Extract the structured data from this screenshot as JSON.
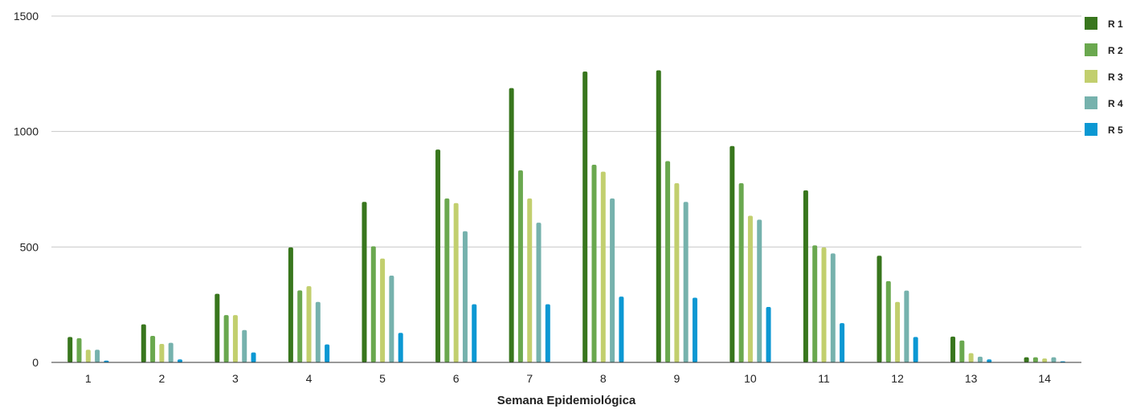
{
  "chart_data": {
    "type": "bar",
    "title": "",
    "xlabel": "Semana Epidemiológica",
    "ylabel": "",
    "ylim": [
      0,
      1500
    ],
    "yticks": [
      0,
      500,
      1000,
      1500
    ],
    "grid": true,
    "legend_position": "right",
    "categories": [
      "1",
      "2",
      "3",
      "4",
      "5",
      "6",
      "7",
      "8",
      "9",
      "10",
      "11",
      "12",
      "13",
      "14"
    ],
    "series": [
      {
        "name": "R 1",
        "color": "#38761d",
        "values": [
          110,
          165,
          297,
          498,
          695,
          922,
          1188,
          1260,
          1265,
          937,
          745,
          462,
          112,
          22
        ]
      },
      {
        "name": "R 2",
        "color": "#6aa84f",
        "values": [
          105,
          115,
          205,
          312,
          503,
          710,
          832,
          856,
          872,
          776,
          507,
          352,
          95,
          22
        ]
      },
      {
        "name": "R 3",
        "color": "#c2cf6e",
        "values": [
          55,
          80,
          205,
          330,
          450,
          690,
          710,
          826,
          776,
          635,
          498,
          262,
          40,
          17
        ]
      },
      {
        "name": "R 4",
        "color": "#76b2ad",
        "values": [
          55,
          85,
          140,
          262,
          376,
          568,
          605,
          710,
          695,
          618,
          472,
          311,
          25,
          22
        ]
      },
      {
        "name": "R 5",
        "color": "#0b98d3",
        "values": [
          8,
          13,
          43,
          78,
          128,
          252,
          252,
          285,
          280,
          240,
          170,
          110,
          13,
          5
        ]
      }
    ]
  }
}
